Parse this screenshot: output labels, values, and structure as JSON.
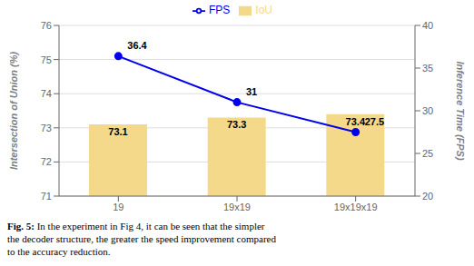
{
  "chart_data": {
    "type": "bar",
    "categories": [
      "19",
      "19x19",
      "19x19x19"
    ],
    "series": [
      {
        "name": "IoU",
        "type": "bar",
        "color": "#F5D98A",
        "values": [
          73.1,
          73.3,
          73.4
        ],
        "data_labels": true
      },
      {
        "name": "FPS",
        "type": "line",
        "color": "#0000EE",
        "marker": "circle",
        "axis": "y2",
        "values": [
          36.4,
          31,
          27.5
        ],
        "data_labels": true
      }
    ],
    "ylim": [
      71,
      76
    ],
    "yticks": [
      71,
      72,
      73,
      74,
      75,
      76
    ],
    "y2lim": [
      20,
      40
    ],
    "y2ticks": [
      20,
      25,
      30,
      35,
      40
    ],
    "ylabel": "Intersection of Union (%)",
    "y2label": "Inference Time (FPS)",
    "grid": true,
    "legend": "top",
    "caption_bold": "Fig. 5:",
    "caption": [
      " In the experiment in Fig 4, it can be seen that the simpler",
      "the decoder structure, the greater the speed improvement compared",
      "to the accuracy reduction."
    ]
  }
}
